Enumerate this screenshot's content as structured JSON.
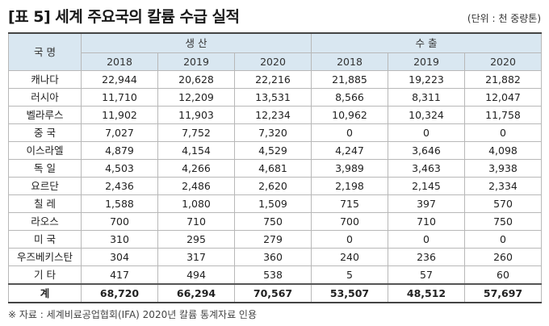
{
  "title": "[표 5]  세계 주요국의 칼륨 수급 실적",
  "unit": "(단위 : 천 중량톤)",
  "table": {
    "country_header": "국 명",
    "groups": [
      "생 산",
      "수 출"
    ],
    "years": [
      "2018",
      "2019",
      "2020",
      "2018",
      "2019",
      "2020"
    ],
    "rows": [
      {
        "name": "캐나다",
        "values": [
          "22,944",
          "20,628",
          "22,216",
          "21,885",
          "19,223",
          "21,882"
        ]
      },
      {
        "name": "러시아",
        "values": [
          "11,710",
          "12,209",
          "13,531",
          "8,566",
          "8,311",
          "12,047"
        ]
      },
      {
        "name": "벨라루스",
        "values": [
          "11,902",
          "11,903",
          "12,234",
          "10,962",
          "10,324",
          "11,758"
        ]
      },
      {
        "name": "중 국",
        "values": [
          "7,027",
          "7,752",
          "7,320",
          "0",
          "0",
          "0"
        ]
      },
      {
        "name": "이스라엘",
        "values": [
          "4,879",
          "4,154",
          "4,529",
          "4,247",
          "3,646",
          "4,098"
        ]
      },
      {
        "name": "독 일",
        "values": [
          "4,503",
          "4,266",
          "4,681",
          "3,989",
          "3,463",
          "3,938"
        ]
      },
      {
        "name": "요르단",
        "values": [
          "2,436",
          "2,486",
          "2,620",
          "2,198",
          "2,145",
          "2,334"
        ]
      },
      {
        "name": "칠 레",
        "values": [
          "1,588",
          "1,080",
          "1,509",
          "715",
          "397",
          "570"
        ]
      },
      {
        "name": "라오스",
        "values": [
          "700",
          "710",
          "750",
          "700",
          "710",
          "750"
        ]
      },
      {
        "name": "미 국",
        "values": [
          "310",
          "295",
          "279",
          "0",
          "0",
          "0"
        ]
      },
      {
        "name": "우즈베키스탄",
        "values": [
          "304",
          "317",
          "360",
          "240",
          "236",
          "260"
        ]
      },
      {
        "name": "기 타",
        "values": [
          "417",
          "494",
          "538",
          "5",
          "57",
          "60"
        ]
      }
    ],
    "total": {
      "name": "계",
      "values": [
        "68,720",
        "66,294",
        "70,567",
        "53,507",
        "48,512",
        "57,697"
      ]
    }
  },
  "source": "※ 자료 : 세계비료공업협회(IFA) 2020년 칼륨 통계자료 인용"
}
